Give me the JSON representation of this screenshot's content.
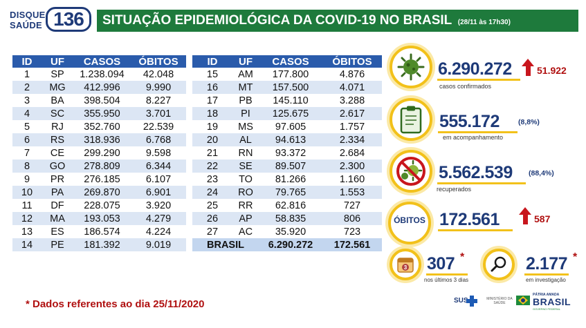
{
  "header": {
    "logo_line1": "DISQUE",
    "logo_line2": "SAÚDE",
    "logo_number": "136",
    "title": "SITUAÇÃO EPIDEMIOLÓGICA DA COVID-19 NO BRASIL",
    "date": "(28/11 às 17h30)"
  },
  "table": {
    "columns": [
      "ID",
      "UF",
      "CASOS",
      "ÓBITOS"
    ],
    "rows_left": [
      [
        "1",
        "SP",
        "1.238.094",
        "42.048"
      ],
      [
        "2",
        "MG",
        "412.996",
        "9.990"
      ],
      [
        "3",
        "BA",
        "398.504",
        "8.227"
      ],
      [
        "4",
        "SC",
        "355.950",
        "3.701"
      ],
      [
        "5",
        "RJ",
        "352.760",
        "22.539"
      ],
      [
        "6",
        "RS",
        "318.936",
        "6.768"
      ],
      [
        "7",
        "CE",
        "299.290",
        "9.598"
      ],
      [
        "8",
        "GO",
        "278.809",
        "6.344"
      ],
      [
        "9",
        "PR",
        "276.185",
        "6.107"
      ],
      [
        "10",
        "PA",
        "269.870",
        "6.901"
      ],
      [
        "11",
        "DF",
        "228.075",
        "3.920"
      ],
      [
        "12",
        "MA",
        "193.053",
        "4.279"
      ],
      [
        "13",
        "ES",
        "186.574",
        "4.224"
      ],
      [
        "14",
        "PE",
        "181.392",
        "9.019"
      ]
    ],
    "rows_right": [
      [
        "15",
        "AM",
        "177.800",
        "4.876"
      ],
      [
        "16",
        "MT",
        "157.500",
        "4.071"
      ],
      [
        "17",
        "PB",
        "145.110",
        "3.288"
      ],
      [
        "18",
        "PI",
        "125.675",
        "2.617"
      ],
      [
        "19",
        "MS",
        "97.605",
        "1.757"
      ],
      [
        "20",
        "AL",
        "94.613",
        "2.334"
      ],
      [
        "21",
        "RN",
        "93.372",
        "2.684"
      ],
      [
        "22",
        "SE",
        "89.507",
        "2.300"
      ],
      [
        "23",
        "TO",
        "81.266",
        "1.160"
      ],
      [
        "24",
        "RO",
        "79.765",
        "1.553"
      ],
      [
        "25",
        "RR",
        "62.816",
        "727"
      ],
      [
        "26",
        "AP",
        "58.835",
        "806"
      ],
      [
        "27",
        "AC",
        "35.920",
        "723"
      ]
    ],
    "total": {
      "label": "BRASIL",
      "casos": "6.290.272",
      "obitos": "172.561"
    }
  },
  "stats": {
    "cases": {
      "value": "6.290.272",
      "delta": "51.922",
      "caption": "casos confirmados",
      "icon": "virus-icon"
    },
    "monitoring": {
      "value": "555.172",
      "pct": "(8,8%)",
      "caption": "em acompanhamento",
      "icon": "clipboard-icon"
    },
    "recovered": {
      "value": "5.562.539",
      "pct": "(88,4%)",
      "caption": "recuperados",
      "icon": "no-virus-icon"
    },
    "deaths": {
      "label": "ÓBITOS",
      "value": "172.561",
      "delta": "587"
    },
    "recent": {
      "value": "307",
      "star": "*",
      "caption": "nos últimos 3 dias",
      "icon": "calendar-icon",
      "calendar_day": "3"
    },
    "investigation": {
      "value": "2.177",
      "star": "*",
      "caption": "em investigação",
      "icon": "magnifier-icon"
    }
  },
  "footnote": "* Dados referentes ao dia 25/11/2020",
  "footer": {
    "sus": "SUS",
    "ministerio": "MINISTÉRIO DA SAÚDE",
    "patria_top": "PÁTRIA AMADA",
    "patria_big": "BRASIL",
    "patria_sub": "GOVERNO FEDERAL"
  },
  "colors": {
    "navy": "#1e3a78",
    "green": "#1e7a3c",
    "gold": "#f2c11a",
    "red": "#c8161d",
    "table_header": "#2a5bab",
    "table_alt": "#dce6f4"
  }
}
